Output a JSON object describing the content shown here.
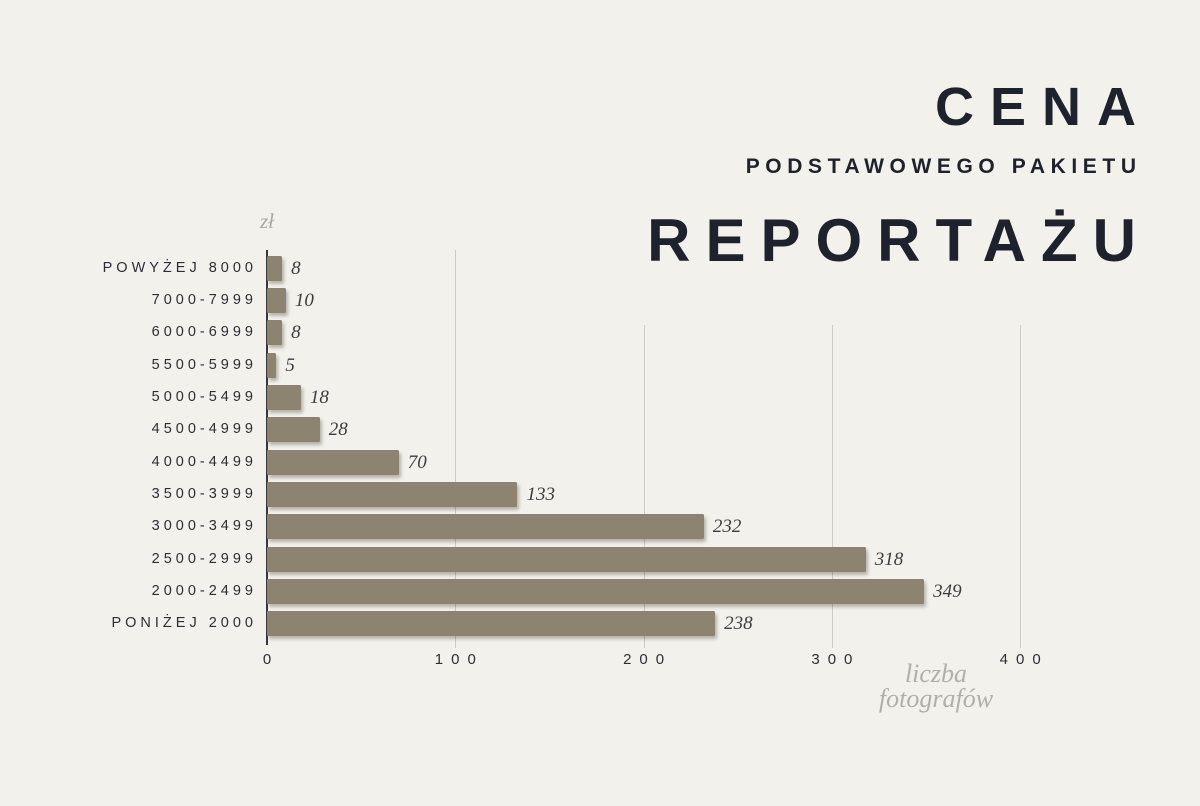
{
  "title": {
    "line1": "CENA",
    "line2": "PODSTAWOWEGO PAKIETU",
    "line3": "REPORTAŻU"
  },
  "chart_data": {
    "type": "bar",
    "orientation": "horizontal",
    "title": "CENA PODSTAWOWEGO PAKIETU REPORTAŻU",
    "y_unit": "zł",
    "xlabel": "liczba fotografów",
    "xlabel_lines": [
      "liczba",
      "fotografów"
    ],
    "categories": [
      "POWYŻEJ 8000",
      "7000-7999",
      "6000-6999",
      "5500-5999",
      "5000-5499",
      "4500-4999",
      "4000-4499",
      "3500-3999",
      "3000-3499",
      "2500-2999",
      "2000-2499",
      "PONIŻEJ 2000"
    ],
    "values": [
      8,
      10,
      8,
      5,
      18,
      28,
      70,
      133,
      232,
      318,
      349,
      238
    ],
    "x_ticks": [
      0,
      100,
      200,
      300,
      400
    ],
    "xlim": [
      0,
      415
    ],
    "grid": "vertical",
    "legend": "none",
    "bar_color": "#8c8470",
    "background_color": "#f3f1ec",
    "title_color": "#1e222c",
    "label_color": "#2b2e36",
    "axis_title_color": "#b1afa9"
  }
}
